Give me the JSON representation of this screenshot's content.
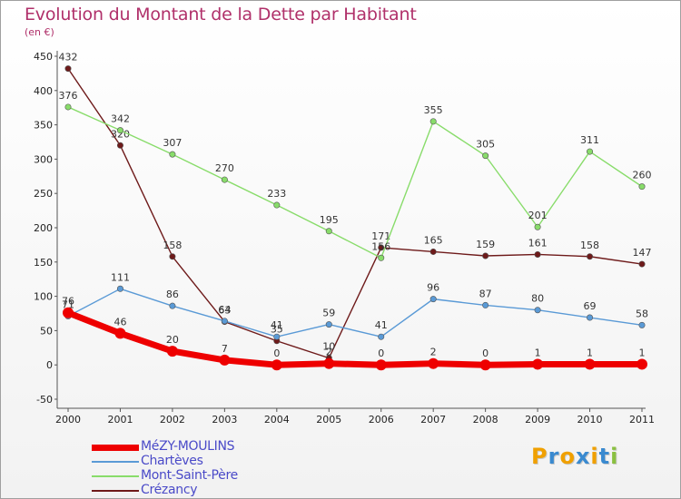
{
  "header": {
    "title": "Evolution du Montant de la Dette par Habitant",
    "subtitle": "(en €)"
  },
  "chart_data": {
    "type": "line",
    "title": "Evolution du Montant de la Dette par Habitant",
    "subtitle": "(en €)",
    "categories": [
      "2000",
      "2001",
      "2002",
      "2003",
      "2004",
      "2005",
      "2006",
      "2007",
      "2008",
      "2009",
      "2010",
      "2011"
    ],
    "ylim": [
      -50,
      450
    ],
    "yticks": [
      -50,
      0,
      50,
      100,
      150,
      200,
      250,
      300,
      350,
      400,
      450
    ],
    "grid": false,
    "legend_position": "bottom-left",
    "series": [
      {
        "name": "Crézancy",
        "color": "#6e1a1a",
        "width": 1.4,
        "values": [
          432,
          320,
          158,
          63,
          35,
          10,
          171,
          165,
          159,
          161,
          158,
          147
        ],
        "labels": [
          "432",
          "320",
          "158",
          "63",
          "35",
          "10",
          "171",
          "165",
          "159",
          "161",
          "158",
          "147"
        ]
      },
      {
        "name": "Chartèves",
        "color": "#5a9ad6",
        "width": 1.4,
        "values": [
          71,
          111,
          86,
          64,
          41,
          59,
          41,
          96,
          87,
          80,
          69,
          58
        ],
        "labels": [
          "71",
          "111",
          "86",
          "64",
          "41",
          "59",
          "41",
          "96",
          "87",
          "80",
          "69",
          "58"
        ]
      },
      {
        "name": "Mont-Saint-Père",
        "color": "#88dc6a",
        "width": 1.4,
        "values": [
          376,
          342,
          307,
          270,
          233,
          195,
          156,
          355,
          305,
          201,
          311,
          260
        ],
        "labels": [
          "376",
          "342",
          "307",
          "270",
          "233",
          "195",
          "156",
          "355",
          "305",
          "201",
          "311",
          "260"
        ]
      },
      {
        "name": "MéZY-MOULINS",
        "color": "#ee0000",
        "width": 7,
        "values": [
          76,
          46,
          20,
          7,
          0,
          2,
          0,
          2,
          0,
          1,
          1,
          1
        ],
        "labels": [
          "76",
          "46",
          "20",
          "7",
          "0",
          "2",
          "0",
          "2",
          "0",
          "1",
          "1",
          "1"
        ]
      }
    ]
  },
  "legend": {
    "items": [
      {
        "label": "MéZY-MOULINS",
        "color": "#ee0000",
        "thickness": 7
      },
      {
        "label": "Chartèves",
        "color": "#5a9ad6",
        "thickness": 2
      },
      {
        "label": "Mont-Saint-Père",
        "color": "#88dc6a",
        "thickness": 2
      },
      {
        "label": "Crézancy",
        "color": "#6e1a1a",
        "thickness": 2
      }
    ]
  },
  "logo": {
    "letters": [
      "P",
      "r",
      "o",
      "x",
      "i",
      "t",
      "i"
    ],
    "colors": [
      "#f0a000",
      "#3a8ad0",
      "#f0a000",
      "#3a8ad0",
      "#f0a000",
      "#3a8ad0",
      "#8ac040"
    ]
  }
}
